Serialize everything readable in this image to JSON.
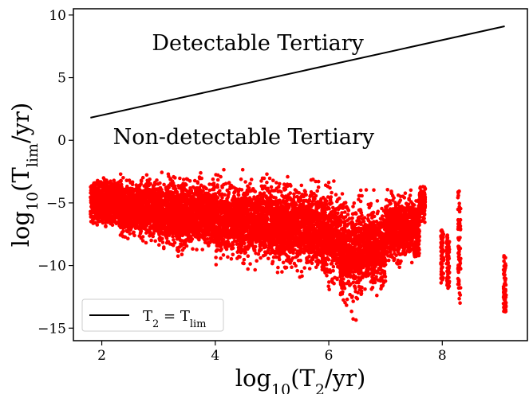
{
  "chart_data": {
    "type": "scatter",
    "title": "",
    "xlabel_base": "log",
    "xlabel_sub": "10",
    "xlabel_rest": "(T",
    "xlabel_sub2": "2",
    "xlabel_end": "/yr)",
    "ylabel_base": "log",
    "ylabel_sub": "10",
    "ylabel_rest": "(T",
    "ylabel_sub2": "lim",
    "ylabel_end": "/yr)",
    "xlim": [
      1.5,
      9.5
    ],
    "ylim": [
      -16,
      10.5
    ],
    "x_ticks": [
      2,
      4,
      6,
      8
    ],
    "y_ticks": [
      -15,
      -10,
      -5,
      0,
      5,
      10
    ],
    "grid": false,
    "legend_position": "lower-left",
    "annotations": [
      {
        "text": "Detectable Tertiary",
        "x": 4.75,
        "y": 7.2
      },
      {
        "text": "Non-detectable Tertiary",
        "x": 4.5,
        "y": -0.3
      }
    ],
    "series": [
      {
        "name": "T_2 = T_lim",
        "legend_label_main": "T",
        "legend_label_sub": "2",
        "legend_label_eq": " = T",
        "legend_label_sub2": "lim",
        "kind": "line",
        "color": "#000000",
        "x": [
          1.8,
          9.1
        ],
        "y": [
          1.8,
          9.1
        ]
      },
      {
        "name": "scatter",
        "kind": "scatter",
        "color": "#ff0000",
        "bands": [
          {
            "x": [
              1.8,
              2.3
            ],
            "ymin": -7.2,
            "ymax": -2.7
          },
          {
            "x": [
              2.3,
              3.0
            ],
            "ymin": -8.5,
            "ymax": -2.4
          },
          {
            "x": [
              3.0,
              4.0
            ],
            "ymin": -9.5,
            "ymax": -2.2
          },
          {
            "x": [
              4.0,
              5.0
            ],
            "ymin": -10.6,
            "ymax": -2.2
          },
          {
            "x": [
              5.0,
              5.8
            ],
            "ymin": -11.5,
            "ymax": -2.3
          },
          {
            "x": [
              5.8,
              6.2
            ],
            "ymin": -12.6,
            "ymax": -2.6
          },
          {
            "x": [
              6.2,
              6.6
            ],
            "ymin": -14.7,
            "ymax": -3.3
          },
          {
            "x": [
              6.6,
              7.0
            ],
            "ymin": -13.2,
            "ymax": -3.8
          },
          {
            "x": [
              7.0,
              7.6
            ],
            "ymin": -10.5,
            "ymax": -3.6
          },
          {
            "x": [
              7.6,
              7.7
            ],
            "ymin": -6.5,
            "ymax": -3.5
          }
        ],
        "columns": [
          {
            "x": 8.0,
            "ymin": -11.5,
            "ymax": -7.0
          },
          {
            "x": 8.1,
            "ymin": -12.0,
            "ymax": -7.5
          },
          {
            "x": 8.3,
            "ymin": -13.0,
            "ymax": -4.0
          },
          {
            "x": 9.1,
            "ymin": -13.7,
            "ymax": -9.2
          }
        ]
      }
    ]
  }
}
